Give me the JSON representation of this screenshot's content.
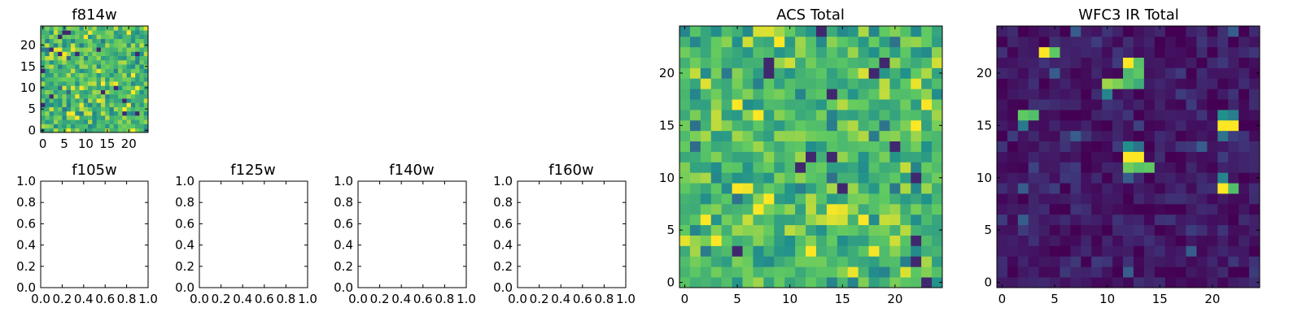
{
  "figure": {
    "description": "Postage-stamp image panels: HST ACS and WFC3/IR filters with summed totals",
    "colormap": "viridis",
    "colormap_stops": [
      "#440154",
      "#3b528b",
      "#21918c",
      "#5ec962",
      "#fde725"
    ]
  },
  "chart_data": [
    {
      "id": "f814w",
      "type": "heatmap",
      "title": "f814w",
      "nx": 25,
      "ny": 25,
      "xlim": [
        -0.5,
        24.5
      ],
      "ylim": [
        -0.5,
        24.5
      ],
      "xticks": [
        0,
        5,
        10,
        15,
        20
      ],
      "yticks": [
        0,
        5,
        10,
        15,
        20
      ],
      "xtick_labels": [
        "0",
        "5",
        "10",
        "15",
        "20"
      ],
      "ytick_labels": [
        "0",
        "5",
        "10",
        "15",
        "20"
      ],
      "value_range": [
        0,
        1
      ],
      "noise_base": 0.68,
      "noise_amp": 0.2,
      "seed": 814,
      "bright_pixels": [
        [
          13,
          7,
          0.98
        ],
        [
          14,
          7,
          0.92
        ],
        [
          14,
          6,
          0.88
        ]
      ]
    },
    {
      "id": "f105w",
      "type": "empty",
      "title": "f105w",
      "xlim": [
        0,
        1
      ],
      "ylim": [
        0,
        1
      ],
      "xticks": [
        0,
        0.2,
        0.4,
        0.6,
        0.8,
        1.0
      ],
      "yticks": [
        0,
        0.2,
        0.4,
        0.6,
        0.8,
        1.0
      ],
      "xtick_labels": [
        "0.0",
        "0.2",
        "0.4",
        "0.6",
        "0.8",
        "1.0"
      ],
      "ytick_labels": [
        "0.0",
        "0.2",
        "0.4",
        "0.6",
        "0.8",
        "1.0"
      ]
    },
    {
      "id": "f125w",
      "type": "empty",
      "title": "f125w",
      "xlim": [
        0,
        1
      ],
      "ylim": [
        0,
        1
      ],
      "xticks": [
        0,
        0.2,
        0.4,
        0.6,
        0.8,
        1.0
      ],
      "yticks": [
        0,
        0.2,
        0.4,
        0.6,
        0.8,
        1.0
      ],
      "xtick_labels": [
        "0.0",
        "0.2",
        "0.4",
        "0.6",
        "0.8",
        "1.0"
      ],
      "ytick_labels": [
        "0.0",
        "0.2",
        "0.4",
        "0.6",
        "0.8",
        "1.0"
      ]
    },
    {
      "id": "f140w",
      "type": "empty",
      "title": "f140w",
      "xlim": [
        0,
        1
      ],
      "ylim": [
        0,
        1
      ],
      "xticks": [
        0,
        0.2,
        0.4,
        0.6,
        0.8,
        1.0
      ],
      "yticks": [
        0,
        0.2,
        0.4,
        0.6,
        0.8,
        1.0
      ],
      "xtick_labels": [
        "0.0",
        "0.2",
        "0.4",
        "0.6",
        "0.8",
        "1.0"
      ],
      "ytick_labels": [
        "0.0",
        "0.2",
        "0.4",
        "0.6",
        "0.8",
        "1.0"
      ]
    },
    {
      "id": "f160w",
      "type": "empty",
      "title": "f160w",
      "xlim": [
        0,
        1
      ],
      "ylim": [
        0,
        1
      ],
      "xticks": [
        0,
        0.2,
        0.4,
        0.6,
        0.8,
        1.0
      ],
      "yticks": [
        0,
        0.2,
        0.4,
        0.6,
        0.8,
        1.0
      ],
      "xtick_labels": [
        "0.0",
        "0.2",
        "0.4",
        "0.6",
        "0.8",
        "1.0"
      ],
      "ytick_labels": [
        "0.0",
        "0.2",
        "0.4",
        "0.6",
        "0.8",
        "1.0"
      ]
    },
    {
      "id": "acs-total",
      "type": "heatmap",
      "title": "ACS Total",
      "nx": 25,
      "ny": 25,
      "xlim": [
        -0.5,
        24.5
      ],
      "ylim": [
        -0.5,
        24.5
      ],
      "xticks": [
        0,
        5,
        10,
        15,
        20
      ],
      "yticks": [
        0,
        5,
        10,
        15,
        20
      ],
      "xtick_labels": [
        "0",
        "5",
        "10",
        "15",
        "20"
      ],
      "ytick_labels": [
        "0",
        "5",
        "10",
        "15",
        "20"
      ],
      "value_range": [
        0,
        1
      ],
      "noise_base": 0.68,
      "noise_amp": 0.2,
      "seed": 1234,
      "bright_pixels": [
        [
          14,
          7,
          0.99
        ],
        [
          15,
          7,
          0.97
        ],
        [
          14,
          6,
          0.95
        ],
        [
          15,
          6,
          0.93
        ],
        [
          13,
          6,
          0.9
        ]
      ]
    },
    {
      "id": "wfc3-ir-total",
      "type": "heatmap",
      "title": "WFC3 IR Total",
      "nx": 25,
      "ny": 25,
      "xlim": [
        -0.5,
        24.5
      ],
      "ylim": [
        -0.5,
        24.5
      ],
      "xticks": [
        0,
        5,
        10,
        15,
        20
      ],
      "yticks": [
        0,
        5,
        10,
        15,
        20
      ],
      "xtick_labels": [
        "0",
        "5",
        "10",
        "15",
        "20"
      ],
      "ytick_labels": [
        "0",
        "5",
        "10",
        "15",
        "20"
      ],
      "value_range": [
        0,
        1
      ],
      "noise_base": 0.07,
      "noise_amp": 0.08,
      "seed": 4321,
      "bright_pixels": [
        [
          4,
          22,
          1.0
        ],
        [
          5,
          22,
          0.75
        ],
        [
          12,
          21,
          1.0
        ],
        [
          13,
          21,
          0.72
        ],
        [
          12,
          20,
          0.68
        ],
        [
          13,
          20,
          0.74
        ],
        [
          10,
          19,
          0.85
        ],
        [
          11,
          19,
          0.8
        ],
        [
          12,
          19,
          0.7
        ],
        [
          13,
          19,
          0.62
        ],
        [
          10,
          18,
          0.45
        ],
        [
          2,
          16,
          0.75
        ],
        [
          3,
          16,
          0.7
        ],
        [
          2,
          15,
          0.4
        ],
        [
          21,
          16,
          0.5
        ],
        [
          22,
          16,
          0.42
        ],
        [
          21,
          15,
          1.0
        ],
        [
          22,
          15,
          1.0
        ],
        [
          21,
          14,
          0.38
        ],
        [
          12,
          13,
          0.5
        ],
        [
          13,
          13,
          0.38
        ],
        [
          12,
          12,
          1.0
        ],
        [
          13,
          12,
          1.0
        ],
        [
          12,
          11,
          0.78
        ],
        [
          13,
          11,
          0.72
        ],
        [
          14,
          11,
          0.75
        ],
        [
          21,
          10,
          0.45
        ],
        [
          21,
          9,
          1.0
        ],
        [
          22,
          9,
          0.7
        ]
      ]
    }
  ]
}
